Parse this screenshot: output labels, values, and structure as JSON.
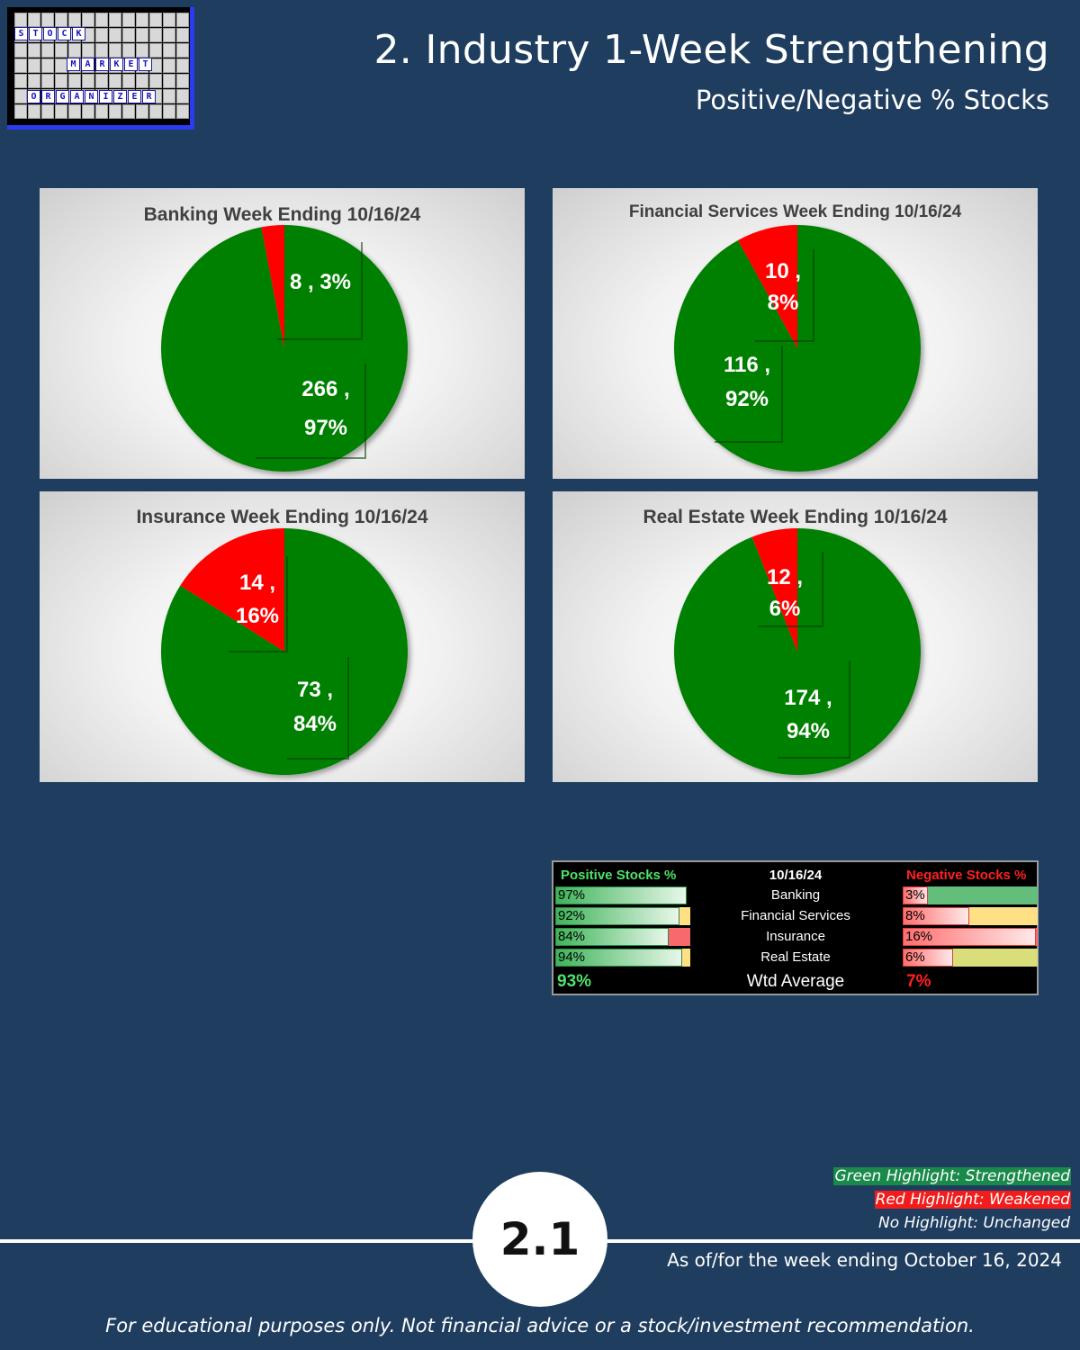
{
  "logo": {
    "words": [
      {
        "letters": [
          "S",
          "T",
          "O",
          "C",
          "K"
        ]
      },
      {
        "letters": [
          "M",
          "A",
          "R",
          "K",
          "E",
          "T"
        ]
      },
      {
        "letters": [
          "O",
          "R",
          "G",
          "A",
          "N",
          "I",
          "Z",
          "E",
          "R"
        ]
      }
    ]
  },
  "header": {
    "title": "2. Industry 1-Week Strengthening",
    "subtitle": "Positive/Negative % Stocks"
  },
  "colors": {
    "positive": "#008000",
    "negative": "#ff0000",
    "background": "#1f3d5f"
  },
  "chart_data": [
    {
      "type": "pie",
      "title": "Banking Week Ending 10/16/24",
      "slices": [
        {
          "count": 266,
          "percent": 97,
          "label_line1": "266 ,",
          "label_line2": "97%",
          "color": "#008000"
        },
        {
          "count": 8,
          "percent": 3,
          "label_line1": "8 , 3%",
          "label_line2": "",
          "color": "#ff0000"
        }
      ]
    },
    {
      "type": "pie",
      "title": "Financial Services Week Ending 10/16/24",
      "slices": [
        {
          "count": 116,
          "percent": 92,
          "label_line1": "116 ,",
          "label_line2": "92%",
          "color": "#008000"
        },
        {
          "count": 10,
          "percent": 8,
          "label_line1": "10 ,",
          "label_line2": "8%",
          "color": "#ff0000"
        }
      ]
    },
    {
      "type": "pie",
      "title": "Insurance Week Ending 10/16/24",
      "slices": [
        {
          "count": 73,
          "percent": 84,
          "label_line1": "73 ,",
          "label_line2": "84%",
          "color": "#008000"
        },
        {
          "count": 14,
          "percent": 16,
          "label_line1": "14 ,",
          "label_line2": "16%",
          "color": "#ff0000"
        }
      ]
    },
    {
      "type": "pie",
      "title": "Real Estate Week Ending 10/16/24",
      "slices": [
        {
          "count": 174,
          "percent": 94,
          "label_line1": "174 ,",
          "label_line2": "94%",
          "color": "#008000"
        },
        {
          "count": 12,
          "percent": 6,
          "label_line1": "12 ,",
          "label_line2": "6%",
          "color": "#ff0000"
        }
      ]
    }
  ],
  "summary": {
    "header_positive": "Positive Stocks %",
    "header_date": "10/16/24",
    "header_negative": "Negative Stocks %",
    "rows": [
      {
        "industry": "Banking",
        "positive": 97,
        "positive_text": "97%",
        "negative": 3,
        "negative_text": "3%",
        "positive_highlight": "none",
        "negative_highlight": "green"
      },
      {
        "industry": "Financial Services",
        "positive": 92,
        "positive_text": "92%",
        "negative": 8,
        "negative_text": "8%",
        "positive_highlight": "yellow",
        "negative_highlight": "yellow"
      },
      {
        "industry": "Insurance",
        "positive": 84,
        "positive_text": "84%",
        "negative": 16,
        "negative_text": "16%",
        "positive_highlight": "red",
        "negative_highlight": "red"
      },
      {
        "industry": "Real Estate",
        "positive": 94,
        "positive_text": "94%",
        "negative": 6,
        "negative_text": "6%",
        "positive_highlight": "yellow",
        "negative_highlight": "khaki"
      }
    ],
    "wtd_label": "Wtd Average",
    "wtd_positive": "93%",
    "wtd_negative": "7%",
    "highlight_colors": {
      "green": "#63be7b",
      "yellow": "#ffe084",
      "red": "#f8696b",
      "khaki": "#d9de7a",
      "none": "transparent"
    }
  },
  "legend": {
    "green_label": "Green Highlight: Strengthened",
    "red_label": "Red Highlight: Weakened",
    "none_label": "No Highlight: Unchanged",
    "green_color": "#1a8a4a",
    "red_color": "#f21c1c"
  },
  "footer": {
    "page_number": "2.1",
    "as_of": "As of/for the week ending October 16, 2024",
    "disclaimer": "For educational purposes only. Not financial advice or a stock/investment recommendation."
  }
}
